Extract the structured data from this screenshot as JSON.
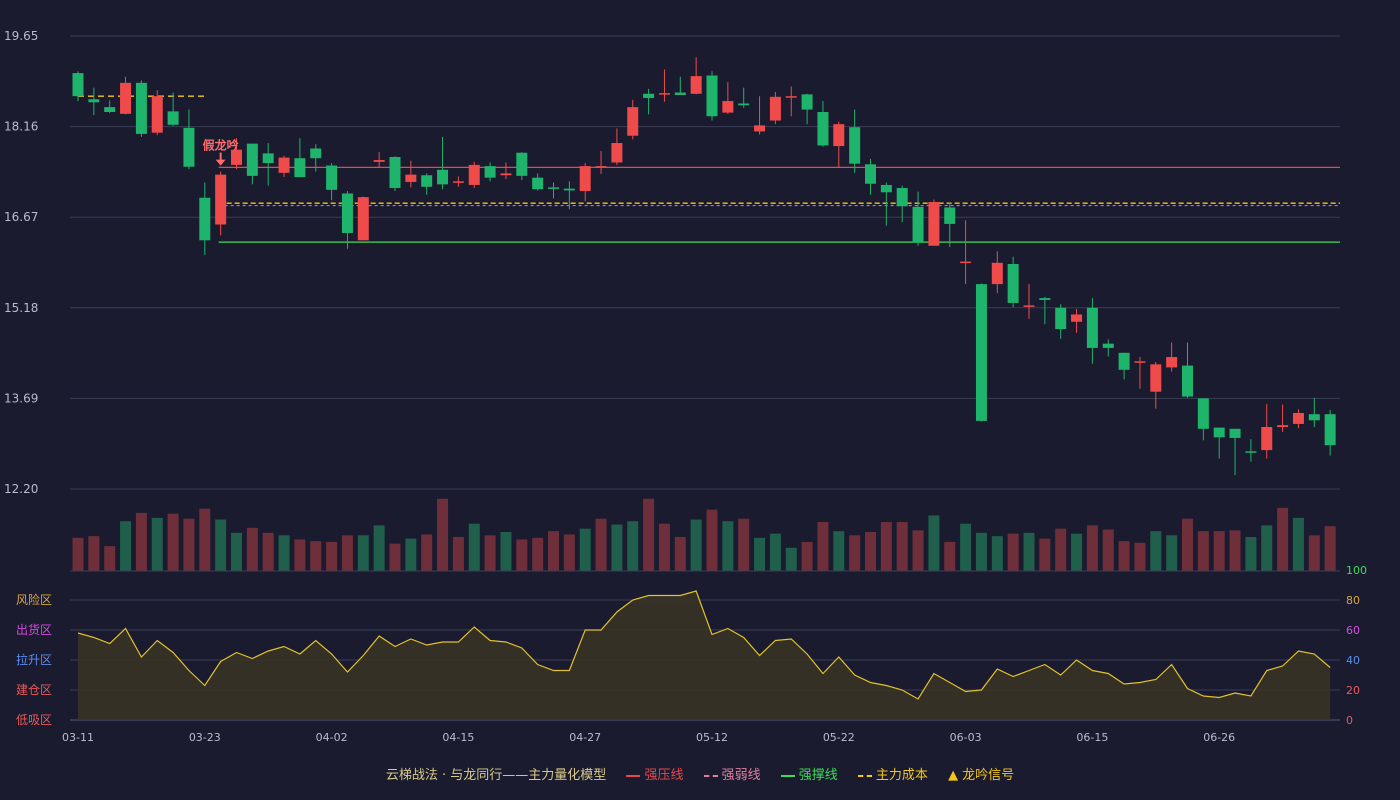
{
  "chart_data": {
    "type": "candlestick",
    "price_axis": {
      "ticks": [
        19.65,
        18.16,
        16.67,
        15.18,
        13.69,
        12.2
      ],
      "range": [
        12.2,
        19.65
      ]
    },
    "x_tick_labels": [
      {
        "index": 0,
        "label": "03-11"
      },
      {
        "index": 8,
        "label": "03-23"
      },
      {
        "index": 16,
        "label": "04-02"
      },
      {
        "index": 24,
        "label": "04-15"
      },
      {
        "index": 32,
        "label": "04-27"
      },
      {
        "index": 40,
        "label": "05-12"
      },
      {
        "index": 48,
        "label": "05-22"
      },
      {
        "index": 56,
        "label": "06-03"
      },
      {
        "index": 64,
        "label": "06-15"
      },
      {
        "index": 72,
        "label": "06-26"
      }
    ],
    "candles": [
      [
        19.04,
        18.66,
        19.07,
        18.58
      ],
      [
        18.61,
        18.56,
        18.8,
        18.35
      ],
      [
        18.48,
        18.4,
        18.59,
        18.38
      ],
      [
        18.37,
        18.88,
        18.98,
        18.36
      ],
      [
        18.88,
        18.04,
        18.92,
        17.99
      ],
      [
        18.06,
        18.66,
        18.76,
        18.02
      ],
      [
        18.41,
        18.19,
        18.72,
        18.17
      ],
      [
        18.14,
        17.5,
        18.44,
        17.46
      ],
      [
        16.99,
        16.29,
        17.24,
        16.05
      ],
      [
        16.55,
        17.37,
        17.42,
        16.37
      ],
      [
        17.53,
        17.78,
        17.97,
        17.46
      ],
      [
        17.88,
        17.35,
        17.88,
        17.21
      ],
      [
        17.72,
        17.56,
        17.89,
        17.19
      ],
      [
        17.4,
        17.65,
        17.68,
        17.33
      ],
      [
        17.64,
        17.33,
        17.97,
        17.33
      ],
      [
        17.8,
        17.64,
        17.87,
        17.42
      ],
      [
        17.52,
        17.12,
        17.56,
        16.95
      ],
      [
        17.06,
        16.41,
        17.1,
        16.15
      ],
      [
        16.29,
        17.0,
        17.01,
        16.29
      ],
      [
        17.58,
        17.61,
        17.74,
        17.48
      ],
      [
        17.66,
        17.15,
        17.67,
        17.1
      ],
      [
        17.25,
        17.37,
        17.6,
        17.16
      ],
      [
        17.36,
        17.17,
        17.39,
        17.04
      ],
      [
        17.45,
        17.21,
        17.99,
        17.13
      ],
      [
        17.24,
        17.26,
        17.34,
        17.17
      ],
      [
        17.2,
        17.53,
        17.58,
        17.15
      ],
      [
        17.51,
        17.32,
        17.57,
        17.26
      ],
      [
        17.36,
        17.39,
        17.57,
        17.3
      ],
      [
        17.73,
        17.35,
        17.74,
        17.28
      ],
      [
        17.32,
        17.13,
        17.39,
        17.11
      ],
      [
        17.16,
        17.15,
        17.24,
        16.98
      ],
      [
        17.14,
        17.11,
        17.26,
        16.8
      ],
      [
        17.1,
        17.51,
        17.56,
        16.93
      ],
      [
        17.5,
        17.51,
        17.76,
        17.38
      ],
      [
        17.57,
        17.89,
        18.13,
        17.53
      ],
      [
        18.01,
        18.48,
        18.6,
        17.95
      ],
      [
        18.7,
        18.63,
        18.78,
        18.36
      ],
      [
        18.71,
        18.71,
        19.1,
        18.57
      ],
      [
        18.72,
        18.68,
        18.98,
        18.68
      ],
      [
        18.7,
        18.99,
        19.3,
        18.69
      ],
      [
        19.0,
        18.33,
        19.07,
        18.26
      ],
      [
        18.39,
        18.58,
        18.89,
        18.37
      ],
      [
        18.54,
        18.51,
        18.8,
        18.47
      ],
      [
        18.08,
        18.18,
        18.66,
        18.03
      ],
      [
        18.26,
        18.65,
        18.73,
        18.2
      ],
      [
        18.64,
        18.66,
        18.82,
        18.33
      ],
      [
        18.69,
        18.44,
        18.7,
        18.2
      ],
      [
        18.4,
        17.85,
        18.58,
        17.83
      ],
      [
        17.84,
        18.2,
        18.24,
        17.48
      ],
      [
        18.15,
        17.55,
        18.44,
        17.4
      ],
      [
        17.54,
        17.22,
        17.63,
        17.04
      ],
      [
        17.2,
        17.08,
        17.24,
        16.53
      ],
      [
        17.15,
        16.85,
        17.19,
        16.59
      ],
      [
        16.84,
        16.25,
        17.09,
        16.2
      ],
      [
        16.2,
        16.92,
        16.96,
        16.22
      ],
      [
        16.83,
        16.56,
        16.91,
        16.18
      ],
      [
        15.92,
        15.94,
        16.62,
        15.57
      ],
      [
        15.57,
        13.32,
        15.58,
        13.31
      ],
      [
        15.57,
        15.92,
        16.11,
        15.42
      ],
      [
        15.9,
        15.26,
        16.02,
        15.19
      ],
      [
        15.2,
        15.22,
        15.57,
        15.0
      ],
      [
        15.34,
        15.31,
        15.36,
        14.91
      ],
      [
        15.18,
        14.83,
        15.24,
        14.67
      ],
      [
        14.95,
        15.07,
        15.16,
        14.77
      ],
      [
        15.18,
        14.52,
        15.34,
        14.26
      ],
      [
        14.59,
        14.52,
        14.66,
        14.38
      ],
      [
        14.44,
        14.16,
        14.44,
        14.0
      ],
      [
        14.3,
        14.3,
        14.37,
        13.85
      ],
      [
        13.8,
        14.25,
        14.29,
        13.52
      ],
      [
        14.2,
        14.37,
        14.61,
        14.13
      ],
      [
        14.23,
        13.72,
        14.61,
        13.7
      ],
      [
        13.69,
        13.19,
        13.69,
        13.0
      ],
      [
        13.21,
        13.05,
        13.17,
        12.7
      ],
      [
        13.19,
        13.04,
        13.19,
        12.43
      ],
      [
        12.82,
        12.81,
        13.02,
        12.65
      ],
      [
        12.84,
        13.22,
        13.6,
        12.7
      ],
      [
        13.22,
        13.25,
        13.59,
        13.14
      ],
      [
        13.27,
        13.45,
        13.51,
        13.2
      ],
      [
        13.43,
        13.33,
        13.7,
        13.22
      ],
      [
        13.43,
        12.92,
        13.5,
        12.75
      ]
    ],
    "volume": [
      [
        0.4,
        "down"
      ],
      [
        0.42,
        "down"
      ],
      [
        0.3,
        "down"
      ],
      [
        0.6,
        "up"
      ],
      [
        0.7,
        "down"
      ],
      [
        0.64,
        "up"
      ],
      [
        0.69,
        "down"
      ],
      [
        0.63,
        "down"
      ],
      [
        0.75,
        "down"
      ],
      [
        0.62,
        "up"
      ],
      [
        0.46,
        "up"
      ],
      [
        0.52,
        "down"
      ],
      [
        0.46,
        "down"
      ],
      [
        0.43,
        "up"
      ],
      [
        0.38,
        "down"
      ],
      [
        0.36,
        "down"
      ],
      [
        0.35,
        "down"
      ],
      [
        0.43,
        "down"
      ],
      [
        0.43,
        "up"
      ],
      [
        0.55,
        "up"
      ],
      [
        0.33,
        "down"
      ],
      [
        0.39,
        "up"
      ],
      [
        0.44,
        "down"
      ],
      [
        0.87,
        "down"
      ],
      [
        0.41,
        "down"
      ],
      [
        0.57,
        "up"
      ],
      [
        0.43,
        "down"
      ],
      [
        0.47,
        "up"
      ],
      [
        0.38,
        "down"
      ],
      [
        0.4,
        "down"
      ],
      [
        0.48,
        "down"
      ],
      [
        0.44,
        "down"
      ],
      [
        0.51,
        "up"
      ],
      [
        0.63,
        "down"
      ],
      [
        0.56,
        "up"
      ],
      [
        0.6,
        "up"
      ],
      [
        0.87,
        "down"
      ],
      [
        0.57,
        "down"
      ],
      [
        0.41,
        "down"
      ],
      [
        0.62,
        "up"
      ],
      [
        0.74,
        "down"
      ],
      [
        0.6,
        "up"
      ],
      [
        0.63,
        "down"
      ],
      [
        0.4,
        "up"
      ],
      [
        0.45,
        "up"
      ],
      [
        0.28,
        "up"
      ],
      [
        0.35,
        "down"
      ],
      [
        0.59,
        "down"
      ],
      [
        0.48,
        "up"
      ],
      [
        0.43,
        "down"
      ],
      [
        0.47,
        "down"
      ],
      [
        0.59,
        "down"
      ],
      [
        0.59,
        "down"
      ],
      [
        0.49,
        "down"
      ],
      [
        0.67,
        "up"
      ],
      [
        0.35,
        "down"
      ],
      [
        0.57,
        "up"
      ],
      [
        0.46,
        "up"
      ],
      [
        0.42,
        "up"
      ],
      [
        0.45,
        "down"
      ],
      [
        0.46,
        "up"
      ],
      [
        0.39,
        "down"
      ],
      [
        0.51,
        "down"
      ],
      [
        0.45,
        "up"
      ],
      [
        0.55,
        "down"
      ],
      [
        0.5,
        "down"
      ],
      [
        0.36,
        "down"
      ],
      [
        0.34,
        "down"
      ],
      [
        0.48,
        "up"
      ],
      [
        0.43,
        "up"
      ],
      [
        0.63,
        "down"
      ],
      [
        0.48,
        "down"
      ],
      [
        0.48,
        "down"
      ],
      [
        0.49,
        "down"
      ],
      [
        0.41,
        "up"
      ],
      [
        0.55,
        "up"
      ],
      [
        0.76,
        "down"
      ],
      [
        0.64,
        "up"
      ],
      [
        0.43,
        "down"
      ],
      [
        0.54,
        "down"
      ]
    ],
    "indicator": {
      "axis_ticks": [
        100,
        80,
        60,
        40,
        20,
        0
      ],
      "axis_tick_colors": [
        "#3ddc5a",
        "#d9a441",
        "#d64ae0",
        "#5b8ef0",
        "#e85a5a",
        "#e85a5a"
      ],
      "zones": [
        {
          "label": "风险区",
          "level": 80,
          "color": "#d9a441"
        },
        {
          "label": "出货区",
          "level": 60,
          "color": "#d64ae0"
        },
        {
          "label": "拉升区",
          "level": 40,
          "color": "#5b8ef0"
        },
        {
          "label": "建仓区",
          "level": 20,
          "color": "#e85a5a"
        },
        {
          "label": "低吸区",
          "level": 0,
          "color": "#e85a5a"
        }
      ],
      "values": [
        58,
        55,
        51,
        61,
        42,
        53,
        45,
        33,
        23,
        39,
        45,
        41,
        46,
        49,
        44,
        53,
        44,
        32,
        43,
        56,
        49,
        54,
        50,
        52,
        52,
        62,
        53,
        52,
        48,
        37,
        33,
        33,
        60,
        60,
        72,
        80,
        83,
        83,
        83,
        86,
        57,
        61,
        55,
        43,
        53,
        54,
        44,
        31,
        42,
        30,
        25,
        23,
        20,
        14,
        31,
        25,
        19,
        20,
        34,
        29,
        33,
        37,
        30,
        40,
        33,
        31,
        24,
        25,
        27,
        37,
        21,
        16,
        15,
        18,
        16,
        33,
        36,
        46,
        44,
        35
      ]
    },
    "levels": {
      "strong_pressure": {
        "value": 17.49,
        "from_index": 9,
        "color": "#e5484d"
      },
      "strong_weak": {
        "value": 16.86,
        "from_index": 9,
        "color": "#e07fa0"
      },
      "support": {
        "value": 16.26,
        "from_index": 9,
        "color": "#3ddc5a"
      },
      "main_cost": {
        "value": 16.9,
        "from_index": 9,
        "color": "#f5c518"
      },
      "main_cost_early": {
        "value": 18.66,
        "from_index": 0,
        "to_index": 8,
        "color": "#f5c518"
      }
    },
    "annotation": {
      "index": 9,
      "label": "假龙吟",
      "color": "#ff6b6b"
    },
    "colors": {
      "up": "#f04b4b",
      "down": "#1fb46c",
      "vol_up": "#1f5f4b",
      "vol_down": "#6e2f3a",
      "indicator_line": "#e2c12b",
      "indicator_fill": "#3a3424"
    }
  },
  "legend": {
    "title": "云梯战法 · 与龙同行——主力量化模型",
    "items": [
      {
        "label": "强压线",
        "color": "#e5484d",
        "style": "solid"
      },
      {
        "label": "强弱线",
        "color": "#e07fa0",
        "style": "dashed"
      },
      {
        "label": "强撑线",
        "color": "#3ddc5a",
        "style": "solid"
      },
      {
        "label": "主力成本",
        "color": "#f5c518",
        "style": "dashed"
      },
      {
        "label": "龙吟信号",
        "color": "#f5c518",
        "style": "triangle"
      }
    ]
  }
}
